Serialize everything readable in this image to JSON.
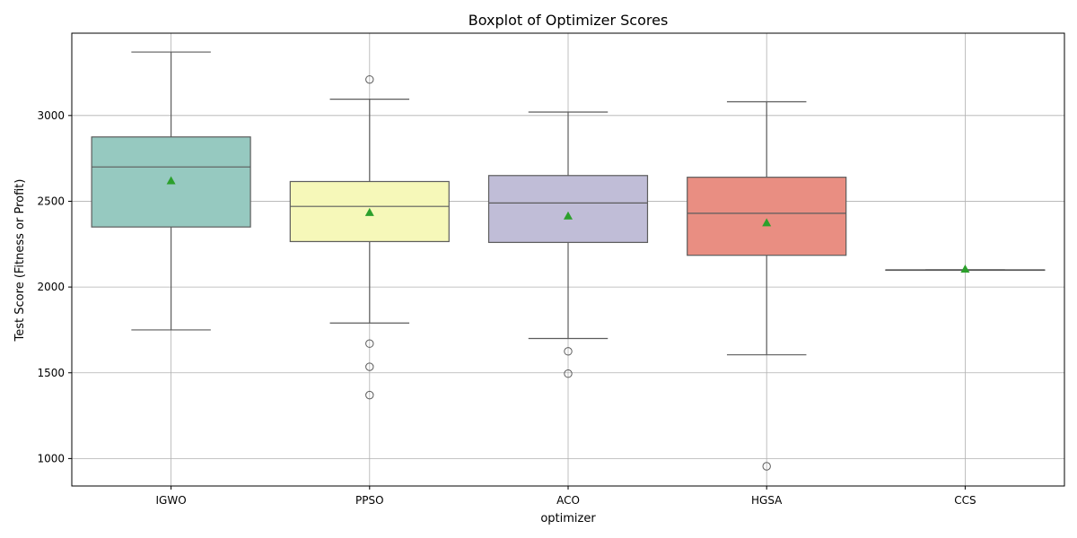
{
  "chart_data": {
    "type": "boxplot",
    "title": "Boxplot of Optimizer Scores",
    "xlabel": "optimizer",
    "ylabel": "Test Score (Fitness or Profit)",
    "ylim": [
      840,
      3480
    ],
    "yticks": [
      1000,
      1500,
      2000,
      2500,
      3000
    ],
    "grid": true,
    "categories": [
      "IGWO",
      "PPSO",
      "ACO",
      "HGSA",
      "CCS"
    ],
    "boxes": [
      {
        "name": "IGWO",
        "whisker_low": 1750,
        "q1": 2350,
        "median": 2700,
        "q3": 2875,
        "whisker_high": 3370,
        "mean": 2620,
        "outliers": [],
        "color": "#96c9c0"
      },
      {
        "name": "PPSO",
        "whisker_low": 1790,
        "q1": 2265,
        "median": 2470,
        "q3": 2615,
        "whisker_high": 3095,
        "mean": 2435,
        "outliers": [
          3210,
          1670,
          1535,
          1370
        ],
        "color": "#f6f8b9"
      },
      {
        "name": "ACO",
        "whisker_low": 1700,
        "q1": 2260,
        "median": 2490,
        "q3": 2650,
        "whisker_high": 3020,
        "mean": 2415,
        "outliers": [
          1625,
          1495
        ],
        "color": "#c0bdd7"
      },
      {
        "name": "HGSA",
        "whisker_low": 1605,
        "q1": 2185,
        "median": 2430,
        "q3": 2640,
        "whisker_high": 3080,
        "mean": 2375,
        "outliers": [
          955
        ],
        "color": "#e98e82"
      },
      {
        "name": "CCS",
        "whisker_low": 2100,
        "q1": 2100,
        "median": 2100,
        "q3": 2100,
        "whisker_high": 2100,
        "mean": 2105,
        "outliers": [],
        "color": "#8fb3d6"
      }
    ],
    "colors": {
      "mean_marker": "#2ca02c",
      "box_edge": "#5c5c5c",
      "grid": "#b0b0b0"
    }
  }
}
